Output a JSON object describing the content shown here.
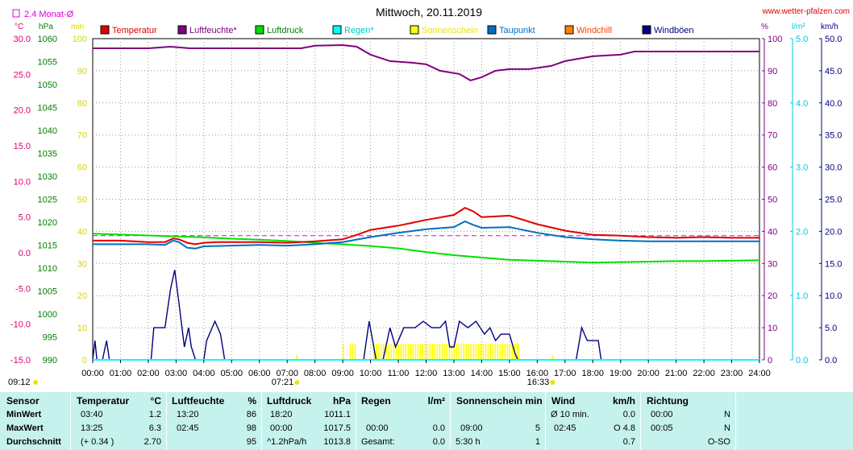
{
  "header": {
    "title": "Mittwoch, 20.11.2019",
    "site": "www.wetter-pfalzen.com",
    "avg_label": "2.4 Monat-Ø"
  },
  "axes": {
    "left1_unit": "°C",
    "left2_unit": "hPa",
    "left3_unit": "min",
    "right1_unit": "%",
    "right2_unit": "l/m²",
    "right3_unit": "km/h",
    "temp_ticks": [
      "30.0",
      "25.0",
      "20.0",
      "15.0",
      "10.0",
      "5.0",
      "0.0",
      "-5.0",
      "-10.0",
      "-15.0"
    ],
    "pressure_ticks": [
      "1060",
      "1055",
      "1050",
      "1045",
      "1040",
      "1035",
      "1030",
      "1025",
      "1020",
      "1015",
      "1010",
      "1005",
      "1000",
      "995",
      "990"
    ],
    "min_ticks": [
      "100",
      "90",
      "80",
      "70",
      "60",
      "50",
      "40",
      "30",
      "20",
      "10",
      "0"
    ],
    "pct_ticks": [
      "100",
      "90",
      "80",
      "70",
      "60",
      "50",
      "40",
      "30",
      "20",
      "10",
      "0"
    ],
    "rain_ticks": [
      "5.0",
      "4.0",
      "3.0",
      "2.0",
      "1.0",
      "0.0"
    ],
    "wind_ticks": [
      "50.0",
      "45.0",
      "40.0",
      "35.0",
      "30.0",
      "25.0",
      "20.0",
      "15.0",
      "10.0",
      "5.0",
      "0.0"
    ],
    "x_ticks": [
      "00:00",
      "01:00",
      "02:00",
      "03:00",
      "04:00",
      "05:00",
      "06:00",
      "07:00",
      "08:00",
      "09:00",
      "10:00",
      "11:00",
      "12:00",
      "13:00",
      "14:00",
      "15:00",
      "16:00",
      "17:00",
      "18:00",
      "19:00",
      "20:00",
      "21:00",
      "22:00",
      "23:00",
      "24:00"
    ]
  },
  "markers": {
    "sunrise": "07:21",
    "sunset": "16:33",
    "current_time": "09:12"
  },
  "legend": [
    {
      "label": "Temperatur",
      "color": "#e00000",
      "text_color": "#e00000"
    },
    {
      "label": "Luftfeuchte*",
      "color": "#800080",
      "text_color": "#800080"
    },
    {
      "label": "Luftdruck",
      "color": "#00e000",
      "text_color": "#008000"
    },
    {
      "label": "Regen*",
      "color": "#00ffff",
      "text_color": "#00c8c8"
    },
    {
      "label": "Sonnenschein",
      "color": "#ffff00",
      "text_color": "#e6e600"
    },
    {
      "label": "Taupunkt",
      "color": "#0070c0",
      "text_color": "#0070c0"
    },
    {
      "label": "Windchill",
      "color": "#ff8000",
      "text_color": "#ff4000"
    },
    {
      "label": "Windböen",
      "color": "#000080",
      "text_color": "#000080"
    }
  ],
  "colors": {
    "temp_axis": "#e0006a",
    "pressure_axis": "#008000",
    "min_axis": "#d6d600",
    "pct_axis": "#800080",
    "rain_axis": "#00c8e0",
    "wind_axis": "#000080",
    "avg_line": "#e000e0",
    "temperature": "#e00000",
    "humidity": "#800080",
    "pressure": "#00e000",
    "dewpoint": "#0070c0",
    "gusts": "#000080",
    "sun": "#ffff00",
    "rain": "#00ffff"
  },
  "chart_data": {
    "type": "line",
    "title": "Mittwoch, 20.11.2019",
    "x_range_hours": [
      0,
      24
    ],
    "ylim_temperature": [
      -15,
      30
    ],
    "ylim_pressure": [
      990,
      1060
    ],
    "ylim_humidity": [
      0,
      100
    ],
    "ylim_rain": [
      0,
      5
    ],
    "ylim_wind": [
      0,
      50
    ],
    "ylim_sunshine_min": [
      0,
      100
    ],
    "avg_temperature_reference": 2.4,
    "series": [
      {
        "name": "Temperatur",
        "unit": "°C",
        "points": [
          [
            0,
            1.7
          ],
          [
            1,
            1.7
          ],
          [
            2,
            1.5
          ],
          [
            2.6,
            1.5
          ],
          [
            2.9,
            2.0
          ],
          [
            3.1,
            1.9
          ],
          [
            3.4,
            1.4
          ],
          [
            3.7,
            1.2
          ],
          [
            4.0,
            1.4
          ],
          [
            4.5,
            1.5
          ],
          [
            5,
            1.5
          ],
          [
            6,
            1.5
          ],
          [
            7,
            1.4
          ],
          [
            8,
            1.6
          ],
          [
            9,
            1.9
          ],
          [
            9.5,
            2.5
          ],
          [
            10,
            3.2
          ],
          [
            11,
            3.8
          ],
          [
            12,
            4.6
          ],
          [
            13,
            5.3
          ],
          [
            13.4,
            6.3
          ],
          [
            13.7,
            5.8
          ],
          [
            14,
            5.0
          ],
          [
            15,
            5.2
          ],
          [
            16,
            4.0
          ],
          [
            17,
            3.1
          ],
          [
            18,
            2.5
          ],
          [
            19,
            2.4
          ],
          [
            20,
            2.2
          ],
          [
            21,
            2.1
          ],
          [
            22,
            2.2
          ],
          [
            23,
            2.1
          ],
          [
            24,
            2.1
          ]
        ]
      },
      {
        "name": "Taupunkt",
        "unit": "°C",
        "points": [
          [
            0,
            1.2
          ],
          [
            1,
            1.2
          ],
          [
            2,
            1.2
          ],
          [
            2.6,
            1.1
          ],
          [
            2.9,
            1.7
          ],
          [
            3.1,
            1.5
          ],
          [
            3.4,
            0.7
          ],
          [
            3.7,
            0.6
          ],
          [
            4.0,
            0.9
          ],
          [
            5,
            1.0
          ],
          [
            6,
            1.1
          ],
          [
            7,
            1.0
          ],
          [
            8,
            1.2
          ],
          [
            9,
            1.5
          ],
          [
            10,
            2.2
          ],
          [
            11,
            2.8
          ],
          [
            12,
            3.3
          ],
          [
            13,
            3.6
          ],
          [
            13.4,
            4.4
          ],
          [
            13.7,
            3.9
          ],
          [
            14,
            3.5
          ],
          [
            15,
            3.6
          ],
          [
            16,
            2.8
          ],
          [
            17,
            2.2
          ],
          [
            18,
            1.9
          ],
          [
            19,
            1.7
          ],
          [
            20,
            1.6
          ],
          [
            21,
            1.6
          ],
          [
            22,
            1.6
          ],
          [
            23,
            1.6
          ],
          [
            24,
            1.6
          ]
        ]
      },
      {
        "name": "Luftfeuchte*",
        "unit": "%",
        "points": [
          [
            0,
            97
          ],
          [
            1,
            97
          ],
          [
            2,
            97
          ],
          [
            2.8,
            97.5
          ],
          [
            3.5,
            97
          ],
          [
            5,
            97
          ],
          [
            7.5,
            97
          ],
          [
            8,
            97.8
          ],
          [
            9,
            98
          ],
          [
            9.5,
            97.5
          ],
          [
            10,
            95
          ],
          [
            10.7,
            93
          ],
          [
            11.5,
            92.5
          ],
          [
            12,
            92
          ],
          [
            12.5,
            90
          ],
          [
            13.2,
            89
          ],
          [
            13.6,
            87
          ],
          [
            14,
            88
          ],
          [
            14.5,
            90
          ],
          [
            15,
            90.5
          ],
          [
            15.7,
            90.5
          ],
          [
            16.5,
            91.5
          ],
          [
            17,
            93
          ],
          [
            18,
            94.5
          ],
          [
            19,
            95
          ],
          [
            19.5,
            96
          ],
          [
            24,
            96
          ]
        ]
      },
      {
        "name": "Luftdruck",
        "unit": "hPa",
        "points": [
          [
            0,
            1017.5
          ],
          [
            1,
            1017.3
          ],
          [
            2,
            1017.1
          ],
          [
            3,
            1016.9
          ],
          [
            4,
            1016.7
          ],
          [
            5,
            1016.4
          ],
          [
            6,
            1016.2
          ],
          [
            7,
            1015.9
          ],
          [
            8,
            1015.5
          ],
          [
            9,
            1015.2
          ],
          [
            10,
            1014.8
          ],
          [
            11,
            1014.3
          ],
          [
            12,
            1013.5
          ],
          [
            13,
            1012.8
          ],
          [
            14,
            1012.3
          ],
          [
            15,
            1011.8
          ],
          [
            16,
            1011.6
          ],
          [
            17,
            1011.4
          ],
          [
            18,
            1011.2
          ],
          [
            19,
            1011.3
          ],
          [
            20,
            1011.4
          ],
          [
            21,
            1011.5
          ],
          [
            22,
            1011.5
          ],
          [
            23,
            1011.6
          ],
          [
            24,
            1011.7
          ]
        ]
      },
      {
        "name": "Windböen",
        "unit": "km/h",
        "points": [
          [
            0,
            0
          ],
          [
            0.08,
            3
          ],
          [
            0.15,
            0
          ],
          [
            0.35,
            0
          ],
          [
            0.5,
            3
          ],
          [
            0.6,
            0
          ],
          [
            2.1,
            0
          ],
          [
            2.2,
            5
          ],
          [
            2.6,
            5
          ],
          [
            2.8,
            11
          ],
          [
            2.95,
            14
          ],
          [
            3.1,
            9
          ],
          [
            3.3,
            2
          ],
          [
            3.45,
            5
          ],
          [
            3.55,
            2
          ],
          [
            3.7,
            0
          ],
          [
            4.0,
            0
          ],
          [
            4.1,
            3
          ],
          [
            4.4,
            6
          ],
          [
            4.6,
            4
          ],
          [
            4.75,
            0
          ],
          [
            9.75,
            0
          ],
          [
            9.85,
            3
          ],
          [
            9.95,
            6
          ],
          [
            10.2,
            0
          ],
          [
            10.45,
            0
          ],
          [
            10.7,
            5
          ],
          [
            10.9,
            2
          ],
          [
            11.2,
            5
          ],
          [
            11.6,
            5
          ],
          [
            11.9,
            6
          ],
          [
            12.2,
            5
          ],
          [
            12.5,
            5
          ],
          [
            12.7,
            6
          ],
          [
            12.85,
            2
          ],
          [
            13,
            2
          ],
          [
            13.2,
            6
          ],
          [
            13.5,
            5
          ],
          [
            13.8,
            6
          ],
          [
            14.1,
            4
          ],
          [
            14.3,
            5
          ],
          [
            14.5,
            3
          ],
          [
            14.7,
            4
          ],
          [
            15.0,
            4
          ],
          [
            15.2,
            1
          ],
          [
            15.3,
            0
          ],
          [
            17.4,
            0
          ],
          [
            17.6,
            5
          ],
          [
            17.8,
            3
          ],
          [
            18.2,
            3
          ],
          [
            18.3,
            0
          ],
          [
            24,
            0
          ]
        ]
      },
      {
        "name": "Sonnenschein",
        "unit": "min",
        "intervals": [
          [
            9.0,
            9.05
          ],
          [
            9.25,
            9.45
          ],
          [
            10.1,
            10.5
          ],
          [
            10.55,
            15.3
          ],
          [
            15.3,
            15.35
          ]
        ]
      },
      {
        "name": "Regen*",
        "unit": "l/m²",
        "points": [
          [
            0,
            0
          ],
          [
            24,
            0
          ]
        ]
      }
    ]
  },
  "stats": {
    "headers": {
      "sensor": "Sensor",
      "temp": "Temperatur",
      "temp_unit": "°C",
      "hum": "Luftfeuchte",
      "hum_unit": "%",
      "press": "Luftdruck",
      "press_unit": "hPa",
      "rain": "Regen",
      "rain_unit": "l/m²",
      "sun": "Sonnenschein min",
      "wind": "Wind",
      "wind_unit": "km/h",
      "dir": "Richtung"
    },
    "rows": [
      {
        "label": "MinWert",
        "temp_time": "03:40",
        "temp_val": "1.2",
        "hum_time": "13:20",
        "hum_val": "86",
        "press_time": "18:20",
        "press_val": "1011.1",
        "rain_time": "",
        "rain_val": "",
        "sun_time": "",
        "sun_val": "",
        "wind_time": "Ø 10 min.",
        "wind_val": "0.0",
        "dir_time": "00:00",
        "dir_val": "N"
      },
      {
        "label": "MaxWert",
        "temp_time": "13:25",
        "temp_val": "6.3",
        "hum_time": "02:45",
        "hum_val": "98",
        "press_time": "00:00",
        "press_val": "1017.5",
        "rain_time": "00:00",
        "rain_val": "0.0",
        "sun_time": "09:00",
        "sun_val": "5",
        "wind_time": "02:45",
        "wind_val": "O 4.8",
        "dir_time": "00:05",
        "dir_val": "N"
      },
      {
        "label": "Durchschnitt",
        "temp_time": "(+ 0.34 )",
        "temp_val": "2.70",
        "hum_time": "",
        "hum_val": "95",
        "press_time": "^1.2hPa/h",
        "press_val": "1013.8",
        "rain_time": "Gesamt:",
        "rain_val": "0.0",
        "sun_time": "5:30 h",
        "sun_val": "1",
        "wind_time": "",
        "wind_val": "0.7",
        "dir_time": "",
        "dir_val": "O-SO"
      }
    ]
  }
}
